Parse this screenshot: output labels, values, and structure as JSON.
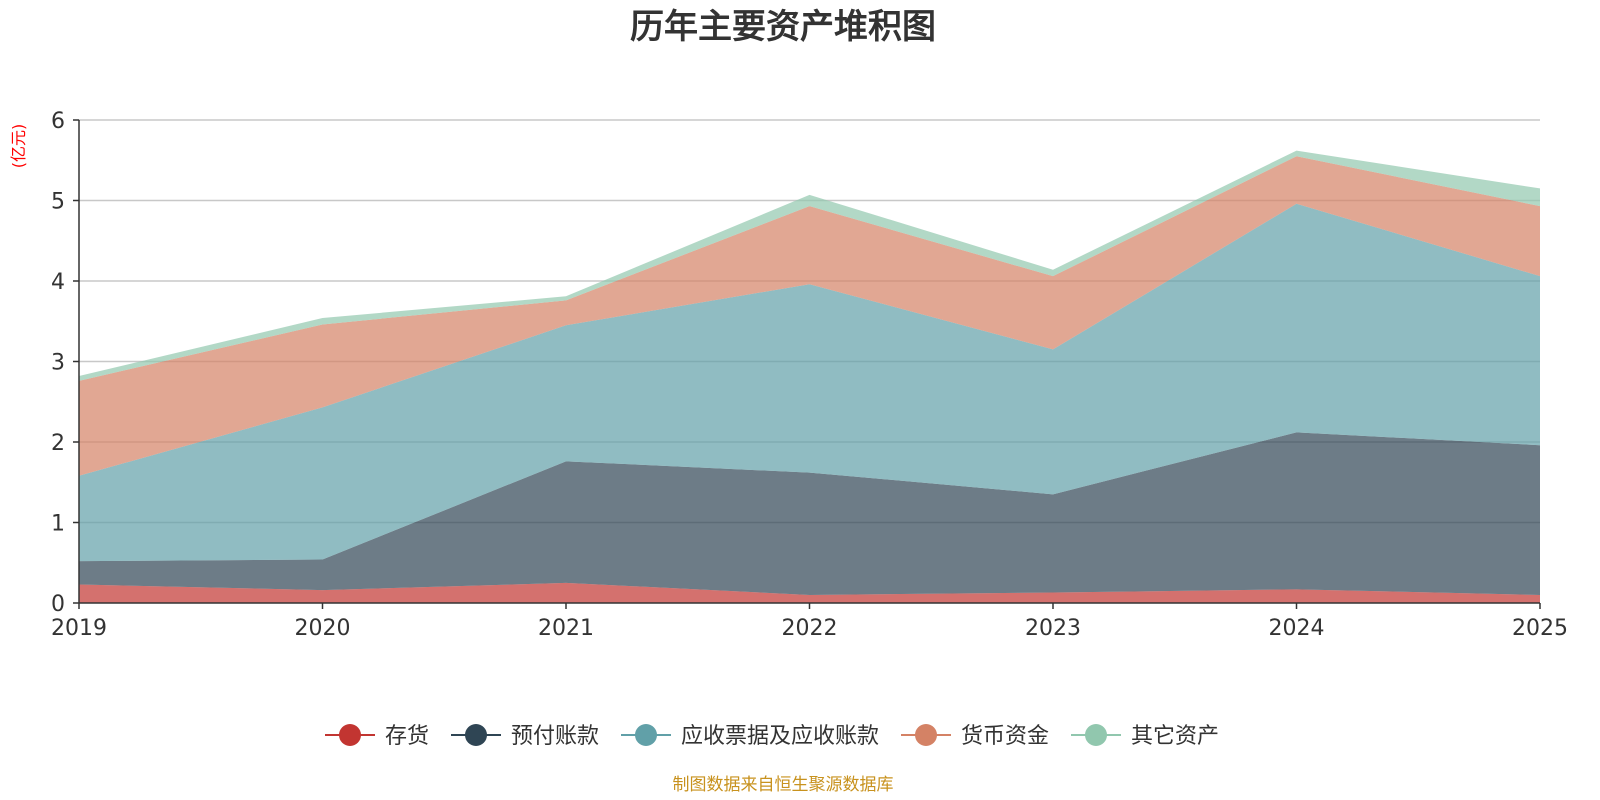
{
  "chart_data": {
    "type": "area",
    "stacked": true,
    "title": "历年主要资产堆积图",
    "ylabel": "(亿元)",
    "xlabel": "",
    "categories": [
      "2019",
      "2020",
      "2021",
      "2022",
      "2023",
      "2024",
      "2025"
    ],
    "ylim": [
      0,
      6
    ],
    "yticks": [
      0,
      1,
      2,
      3,
      4,
      5,
      6
    ],
    "grid": true,
    "legend_position": "bottom",
    "series": [
      {
        "name": "存货",
        "color": "#c23531",
        "values": [
          0.23,
          0.16,
          0.25,
          0.1,
          0.13,
          0.17,
          0.1
        ]
      },
      {
        "name": "预付账款",
        "color": "#2f4554",
        "values": [
          0.29,
          0.38,
          1.51,
          1.52,
          1.22,
          1.95,
          1.86
        ]
      },
      {
        "name": "应收票据及应收账款",
        "color": "#61a0a8",
        "values": [
          1.06,
          1.89,
          1.69,
          2.34,
          1.8,
          2.84,
          2.1
        ]
      },
      {
        "name": "货币资金",
        "color": "#d48265",
        "values": [
          1.18,
          1.03,
          0.31,
          0.97,
          0.91,
          0.59,
          0.87
        ]
      },
      {
        "name": "其它资产",
        "color": "#91c7ae",
        "values": [
          0.06,
          0.08,
          0.05,
          0.14,
          0.08,
          0.07,
          0.22
        ]
      }
    ],
    "source": "制图数据来自恒生聚源数据库"
  }
}
